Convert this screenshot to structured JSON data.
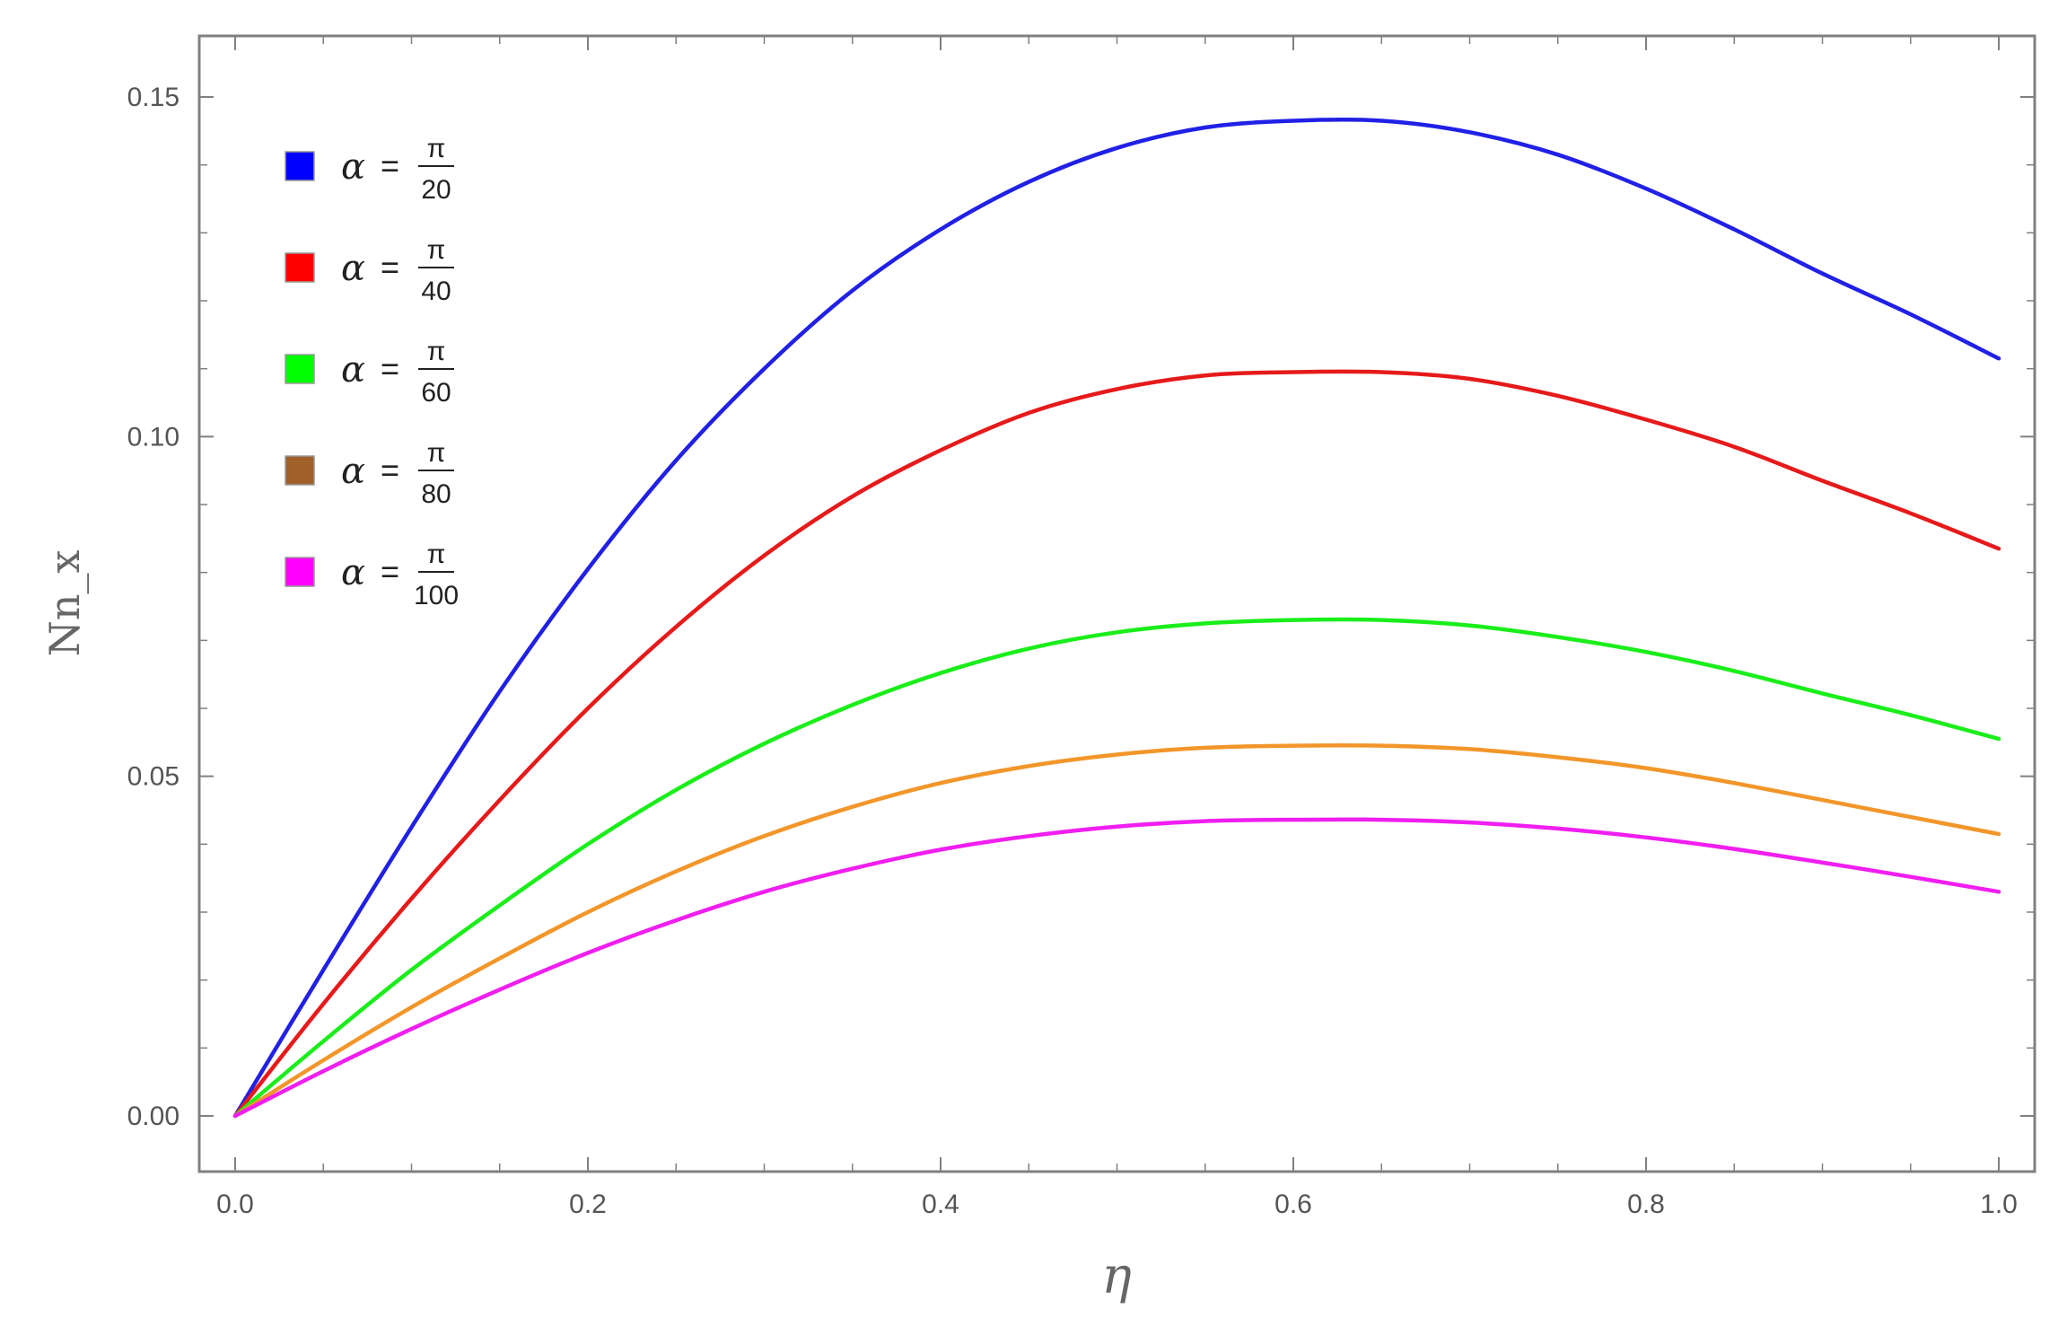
{
  "chart_data": {
    "type": "line",
    "title": "",
    "xlabel": "η",
    "ylabel": "Nn_x",
    "xlim": [
      0.0,
      1.0
    ],
    "ylim": [
      -0.008,
      0.16
    ],
    "x_ticks": [
      "0.0",
      "0.2",
      "0.4",
      "0.6",
      "0.8",
      "1.0"
    ],
    "y_ticks": [
      "0.00",
      "0.05",
      "0.10",
      "0.15"
    ],
    "x_tick_values": [
      0.0,
      0.2,
      0.4,
      0.6,
      0.8,
      1.0
    ],
    "y_tick_values": [
      0.0,
      0.05,
      0.1,
      0.15
    ],
    "grid": false,
    "legend_position": "top-left",
    "x": [
      0.0,
      0.05,
      0.1,
      0.15,
      0.2,
      0.25,
      0.3,
      0.35,
      0.4,
      0.45,
      0.5,
      0.55,
      0.6,
      0.65,
      0.7,
      0.75,
      0.8,
      0.85,
      0.9,
      0.95,
      1.0
    ],
    "series": [
      {
        "name": "α = π/20",
        "legend_symbol": "α",
        "legend_eq": "=",
        "legend_num": "π",
        "legend_den": "20",
        "color": "#2020e6",
        "legend_color": "#0000ff",
        "values": [
          0.0,
          0.0215,
          0.0425,
          0.0625,
          0.0805,
          0.0965,
          0.11,
          0.1215,
          0.1305,
          0.1375,
          0.1425,
          0.1455,
          0.1465,
          0.1465,
          0.1448,
          0.1415,
          0.1365,
          0.1305,
          0.124,
          0.118,
          0.1115
        ]
      },
      {
        "name": "α = π/40",
        "legend_symbol": "α",
        "legend_eq": "=",
        "legend_num": "π",
        "legend_den": "40",
        "color": "#e61a1a",
        "legend_color": "#ff0000",
        "values": [
          0.0,
          0.0165,
          0.032,
          0.0465,
          0.06,
          0.072,
          0.0825,
          0.0912,
          0.098,
          0.1035,
          0.107,
          0.109,
          0.1095,
          0.1095,
          0.1085,
          0.106,
          0.1025,
          0.0985,
          0.0935,
          0.0887,
          0.0835
        ]
      },
      {
        "name": "α = π/60",
        "legend_symbol": "α",
        "legend_eq": "=",
        "legend_num": "π",
        "legend_den": "60",
        "color": "#1aee1a",
        "legend_color": "#00ff00",
        "values": [
          0.0,
          0.011,
          0.0215,
          0.031,
          0.04,
          0.048,
          0.0548,
          0.0605,
          0.0652,
          0.0688,
          0.0712,
          0.0725,
          0.073,
          0.073,
          0.0722,
          0.0705,
          0.0683,
          0.0655,
          0.0622,
          0.059,
          0.0555
        ]
      },
      {
        "name": "α = π/80",
        "legend_symbol": "α",
        "legend_eq": "=",
        "legend_num": "π",
        "legend_den": "80",
        "color": "#f2962a",
        "legend_color": "#a0602a",
        "values": [
          0.0,
          0.0082,
          0.016,
          0.0232,
          0.03,
          0.036,
          0.0412,
          0.0455,
          0.049,
          0.0515,
          0.0532,
          0.0542,
          0.0545,
          0.0545,
          0.054,
          0.0528,
          0.0512,
          0.049,
          0.0465,
          0.044,
          0.0415
        ]
      },
      {
        "name": "α = π/100",
        "legend_symbol": "α",
        "legend_eq": "=",
        "legend_num": "π",
        "legend_den": "100",
        "color": "#f01ef0",
        "legend_color": "#ff00ff",
        "values": [
          0.0,
          0.0066,
          0.0128,
          0.0186,
          0.024,
          0.0288,
          0.033,
          0.0364,
          0.0392,
          0.0412,
          0.0426,
          0.0434,
          0.0436,
          0.0436,
          0.0432,
          0.0423,
          0.041,
          0.0393,
          0.0373,
          0.0352,
          0.033
        ]
      }
    ]
  }
}
